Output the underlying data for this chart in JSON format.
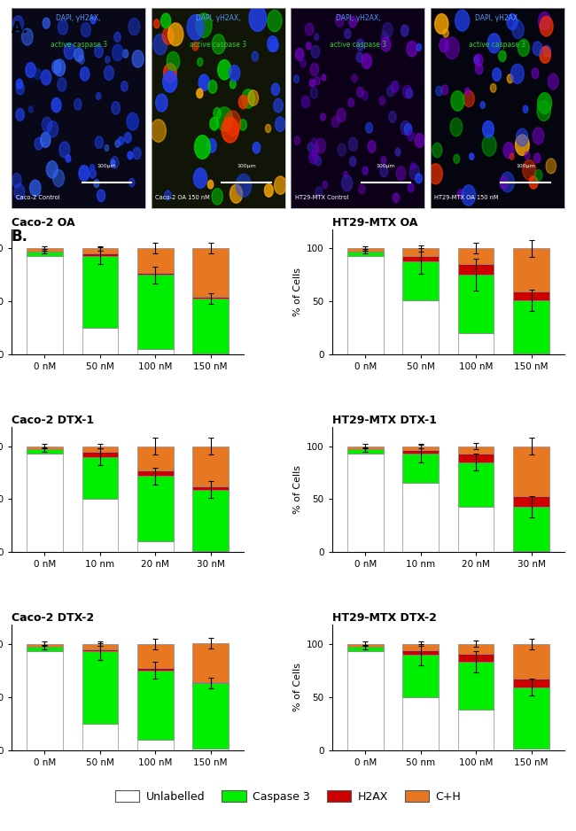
{
  "panel_A_bottom_labels": [
    "Caco-2 Control",
    "Caco-2 OA 150 nM",
    "HT29-MTX Control",
    "HT29-MTX OA 150 nM"
  ],
  "panel_A_bg_colors": [
    "#080818",
    "#101508",
    "#0c0018",
    "#050510"
  ],
  "charts": [
    {
      "title": "Caco-2 OA",
      "x_labels": [
        "0 nM",
        "50 nM",
        "100 nM",
        "150 nM"
      ],
      "unlabelled": [
        93,
        25,
        5,
        1
      ],
      "caspase3": [
        4,
        68,
        70,
        52
      ],
      "h2ax": [
        0,
        2,
        2,
        1
      ],
      "ch": [
        3,
        5,
        23,
        46
      ],
      "err_caspase3": [
        2,
        8,
        8,
        5
      ],
      "err_ch": [
        2,
        2,
        5,
        5
      ]
    },
    {
      "title": "HT29-MTX OA",
      "x_labels": [
        "0 nM",
        "50 nM",
        "100 nM",
        "150 nM"
      ],
      "unlabelled": [
        93,
        51,
        20,
        1
      ],
      "caspase3": [
        4,
        37,
        55,
        50
      ],
      "h2ax": [
        0,
        5,
        10,
        8
      ],
      "ch": [
        3,
        7,
        15,
        41
      ],
      "err_caspase3": [
        2,
        12,
        15,
        10
      ],
      "err_ch": [
        2,
        3,
        5,
        8
      ]
    },
    {
      "title": "Caco-2 DTX-1",
      "x_labels": [
        "0 nM",
        "10 nm",
        "20 nM",
        "30 nM"
      ],
      "unlabelled": [
        93,
        50,
        10,
        1
      ],
      "caspase3": [
        4,
        40,
        62,
        58
      ],
      "h2ax": [
        0,
        5,
        5,
        3
      ],
      "ch": [
        3,
        5,
        23,
        38
      ],
      "err_caspase3": [
        2,
        8,
        8,
        8
      ],
      "err_ch": [
        2,
        2,
        8,
        8
      ]
    },
    {
      "title": "HT29-MTX DTX-1",
      "x_labels": [
        "0 nM",
        "10 nm",
        "20 nM",
        "30 nM"
      ],
      "unlabelled": [
        93,
        65,
        43,
        1
      ],
      "caspase3": [
        4,
        28,
        42,
        42
      ],
      "h2ax": [
        0,
        3,
        8,
        10
      ],
      "ch": [
        3,
        4,
        7,
        47
      ],
      "err_caspase3": [
        2,
        8,
        8,
        10
      ],
      "err_ch": [
        2,
        2,
        3,
        8
      ]
    },
    {
      "title": "Caco-2 DTX-2",
      "x_labels": [
        "0 nM",
        "50 nM",
        "100 nM",
        "150 nM"
      ],
      "unlabelled": [
        93,
        25,
        10,
        1
      ],
      "caspase3": [
        4,
        68,
        65,
        62
      ],
      "h2ax": [
        0,
        2,
        2,
        1
      ],
      "ch": [
        3,
        5,
        23,
        37
      ],
      "err_caspase3": [
        2,
        8,
        8,
        5
      ],
      "err_ch": [
        2,
        2,
        5,
        5
      ]
    },
    {
      "title": "HT29-MTX DTX-2",
      "x_labels": [
        "0 nM",
        "50 nm",
        "100 nM",
        "150 nM"
      ],
      "unlabelled": [
        93,
        50,
        38,
        1
      ],
      "caspase3": [
        4,
        40,
        45,
        58
      ],
      "h2ax": [
        0,
        4,
        8,
        8
      ],
      "ch": [
        3,
        6,
        9,
        33
      ],
      "err_caspase3": [
        2,
        10,
        10,
        8
      ],
      "err_ch": [
        2,
        2,
        3,
        5
      ]
    }
  ],
  "colors": {
    "unlabelled": "#ffffff",
    "caspase3": "#00ee00",
    "h2ax": "#cc0000",
    "ch": "#e87722"
  },
  "bar_edge_color": "#888888",
  "bar_width": 0.65,
  "ylabel": "% of Cells",
  "legend_labels": [
    "Unlabelled",
    "Caspase 3",
    "H2AX",
    "C+H"
  ],
  "fig_label_A": "A.",
  "fig_label_B": "B.",
  "title_fontsize": 9,
  "axis_fontsize": 8,
  "tick_fontsize": 7.5
}
